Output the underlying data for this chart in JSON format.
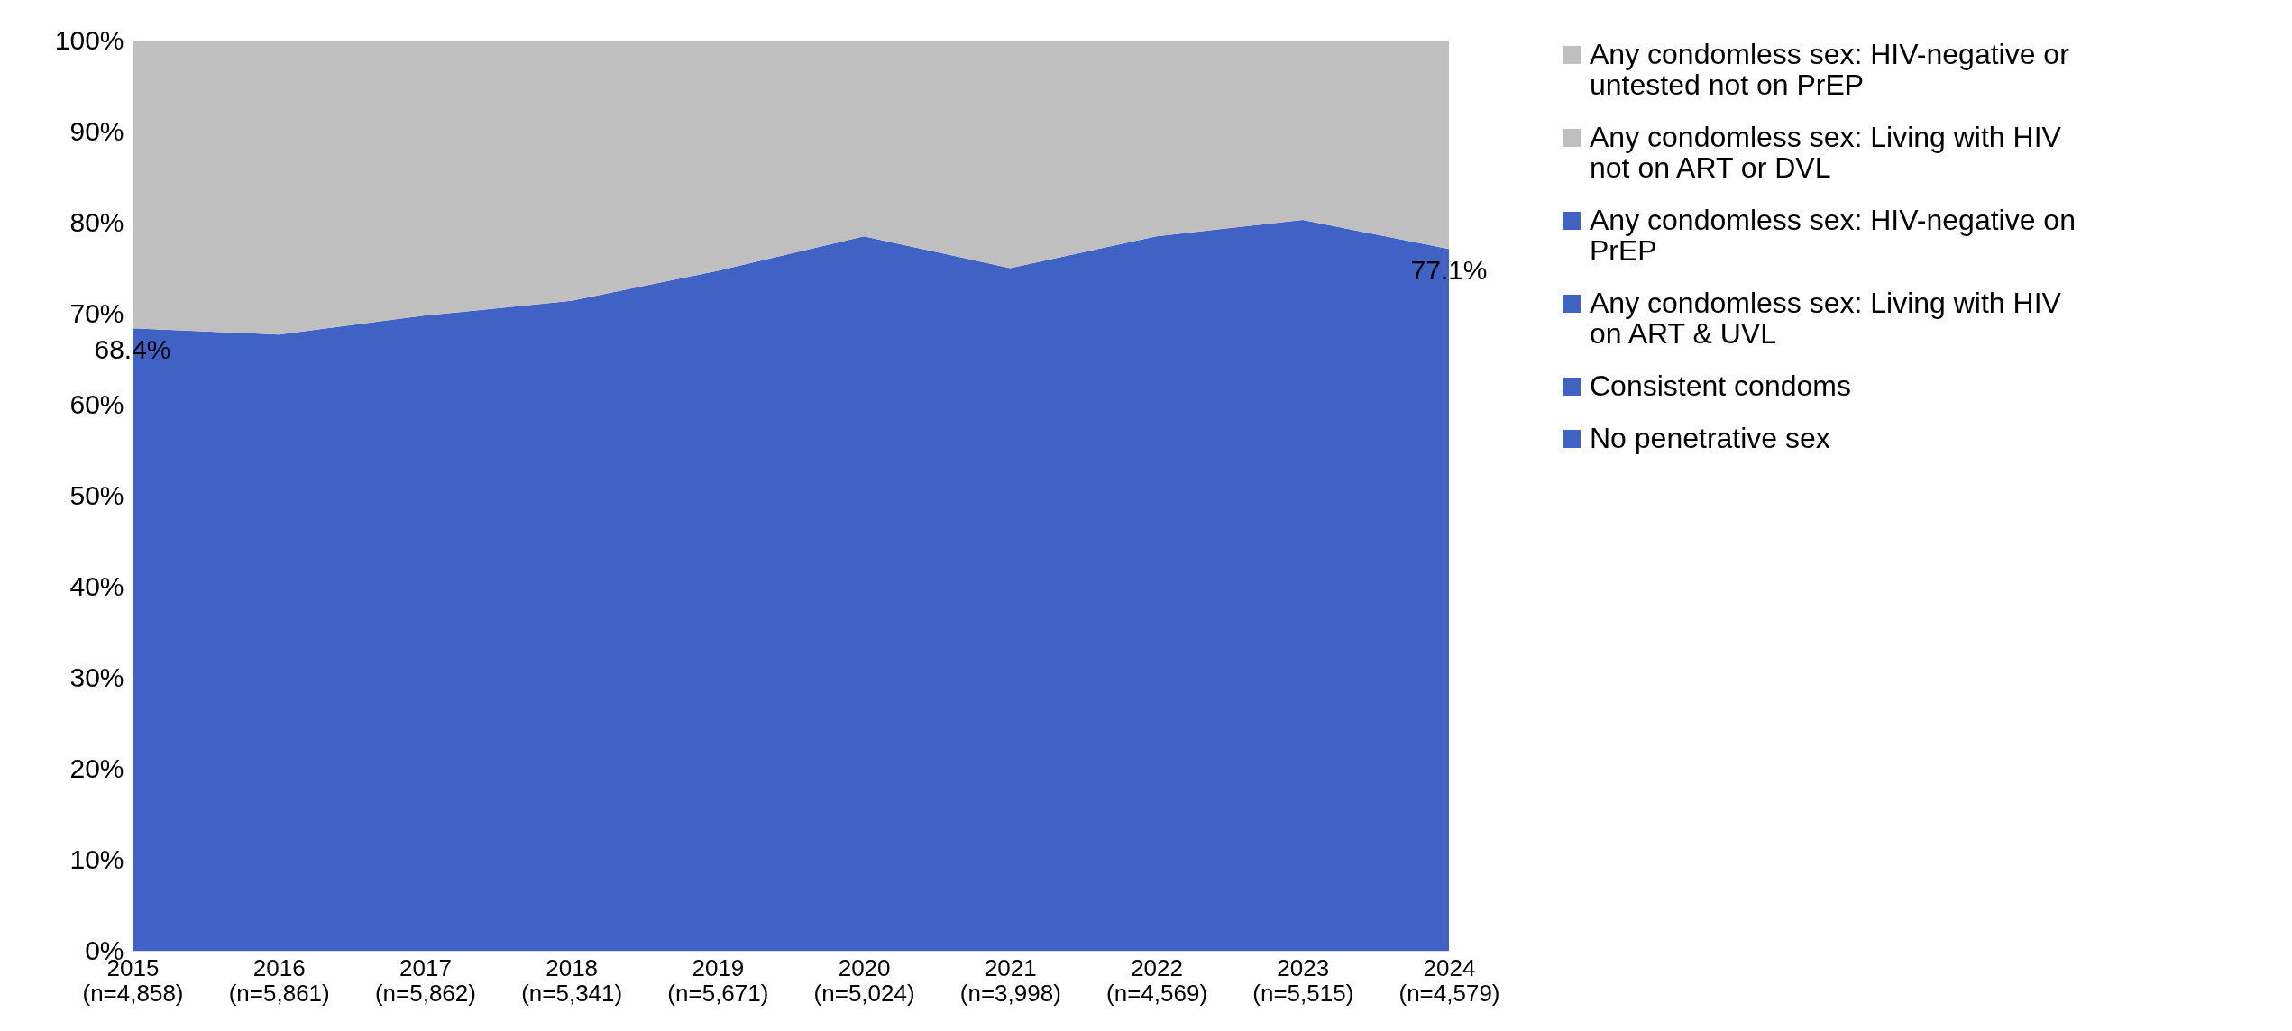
{
  "chart_data": {
    "type": "area",
    "stacked": true,
    "categories": [
      "2015 (n=4,858)",
      "2016 (n=5,861)",
      "2017 (n=5,862)",
      "2018 (n=5,341)",
      "2019 (n=5,671)",
      "2020 (n=5,024)",
      "2021 (n=3,998)",
      "2022 (n=4,569)",
      "2023 (n=5,515)",
      "2024 (n=4,579)"
    ],
    "series": [
      {
        "name": "No penetrative sex",
        "color": "#4062c4",
        "values": [
          68.4,
          67.7,
          69.8,
          71.4,
          74.7,
          78.5,
          75.0,
          78.5,
          80.3,
          77.1
        ],
        "value_labels": [
          "68.4%",
          null,
          null,
          null,
          null,
          null,
          null,
          null,
          null,
          "77.1%"
        ]
      },
      {
        "name": "Consistent condoms",
        "color": "#4062c4",
        "values": [
          null,
          null,
          null,
          null,
          null,
          null,
          null,
          null,
          null,
          null
        ]
      },
      {
        "name": "Any condomless sex: Living with HIV on ART & UVL",
        "color": "#4062c4",
        "values": [
          null,
          null,
          null,
          null,
          null,
          null,
          null,
          null,
          null,
          null
        ]
      },
      {
        "name": "Any condomless sex: HIV-negative on PrEP",
        "color": "#4062c4",
        "values": [
          null,
          null,
          null,
          null,
          null,
          null,
          null,
          null,
          null,
          null
        ]
      },
      {
        "name": "Any condomless sex: Living with HIV not on ART or DVL",
        "color": "#bfbfbf",
        "values": [
          null,
          null,
          null,
          null,
          null,
          null,
          null,
          null,
          null,
          null
        ]
      },
      {
        "name": "Any condomless sex: HIV-negative or untested not on PrEP",
        "color": "#bfbfbf",
        "values": [
          31.6,
          32.3,
          30.2,
          28.6,
          25.3,
          21.5,
          25.0,
          21.5,
          19.7,
          22.9
        ]
      }
    ],
    "ylim": [
      0,
      100
    ],
    "yticks": [
      {
        "value": 0,
        "label": "0%"
      },
      {
        "value": 10,
        "label": "10%"
      },
      {
        "value": 20,
        "label": "20%"
      },
      {
        "value": 30,
        "label": "30%"
      },
      {
        "value": 40,
        "label": "40%"
      },
      {
        "value": 50,
        "label": "50%"
      },
      {
        "value": 60,
        "label": "60%"
      },
      {
        "value": 70,
        "label": "70%"
      },
      {
        "value": 80,
        "label": "80%"
      },
      {
        "value": 90,
        "label": "90%"
      },
      {
        "value": 100,
        "label": "100%"
      }
    ],
    "legend": "right",
    "grid": false
  }
}
